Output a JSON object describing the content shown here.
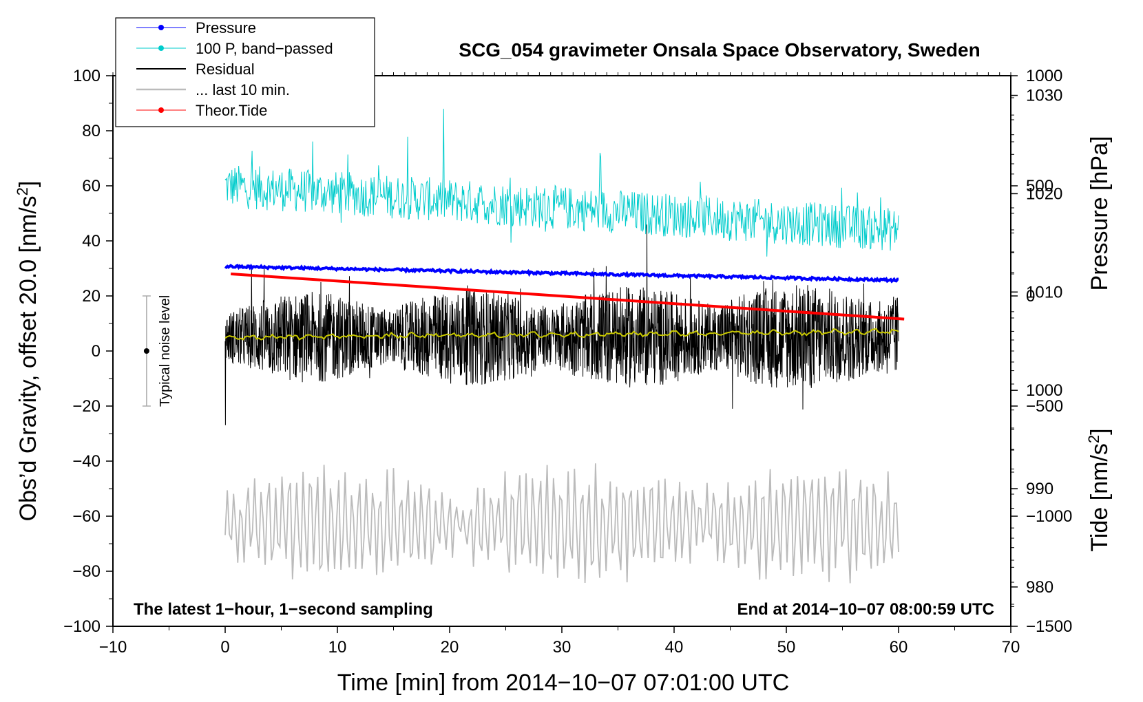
{
  "chart_data": {
    "type": "line",
    "title": "SCG_054 gravimeter Onsala Space Observatory, Sweden",
    "xlabel": "Time [min] from 2014−10−07 07:01:00 UTC",
    "ylabel_left_main": "Obs’d Gravity, offset 20.0 [nm/s",
    "ylabel_left_sup": "2",
    "ylabel_left_end": "]",
    "ylabel_right_pressure": "Pressure [hPa]",
    "ylabel_right_tide_main": "Tide [nm/s",
    "ylabel_right_tide_sup": "2",
    "ylabel_right_tide_end": "]",
    "xlim": [
      -10,
      70
    ],
    "ylim_left": [
      -100,
      100
    ],
    "pressure_axis_range": [
      976,
      1032
    ],
    "tide_axis_range": [
      -1500,
      1000
    ],
    "x_ticks": [
      {
        "value": -10,
        "label": "−10"
      },
      {
        "value": 0,
        "label": "0"
      },
      {
        "value": 10,
        "label": "10"
      },
      {
        "value": 20,
        "label": "20"
      },
      {
        "value": 30,
        "label": "30"
      },
      {
        "value": 40,
        "label": "40"
      },
      {
        "value": 50,
        "label": "50"
      },
      {
        "value": 60,
        "label": "60"
      },
      {
        "value": 70,
        "label": "70"
      }
    ],
    "y_left_ticks": [
      {
        "value": 100,
        "label": "100"
      },
      {
        "value": 80,
        "label": "80"
      },
      {
        "value": 60,
        "label": "60"
      },
      {
        "value": 40,
        "label": "40"
      },
      {
        "value": 20,
        "label": "20"
      },
      {
        "value": 0,
        "label": "0"
      },
      {
        "value": -20,
        "label": "−20"
      },
      {
        "value": -40,
        "label": "−40"
      },
      {
        "value": -60,
        "label": "−60"
      },
      {
        "value": -80,
        "label": "−80"
      },
      {
        "value": -100,
        "label": "−100"
      }
    ],
    "pressure_ticks": [
      {
        "value": 1030,
        "label": "1030"
      },
      {
        "value": 1020,
        "label": "1020"
      },
      {
        "value": 1010,
        "label": "1010"
      },
      {
        "value": 1000,
        "label": "1000"
      },
      {
        "value": 990,
        "label": "990"
      },
      {
        "value": 980,
        "label": "980"
      }
    ],
    "tide_ticks": [
      {
        "value": 1000,
        "label": "1000"
      },
      {
        "value": 500,
        "label": "500"
      },
      {
        "value": 0,
        "label": "0"
      },
      {
        "value": -500,
        "label": "−500"
      },
      {
        "value": -1000,
        "label": "−1000"
      },
      {
        "value": -1500,
        "label": "−1500"
      }
    ],
    "legend": [
      {
        "label": "Pressure",
        "color": "#0000ff",
        "marker": true
      },
      {
        "label": "100 P, band−passed",
        "color": "#00cccc",
        "marker": true
      },
      {
        "label": "Residual",
        "color": "#000000",
        "marker": false
      },
      {
        "label": "... last 10 min.",
        "color": "#bbbbbb",
        "marker": false
      },
      {
        "label": "Theor.Tide",
        "color": "#ff0000",
        "marker": true
      }
    ],
    "annotations": {
      "bottom_left": "The latest 1−hour, 1−second sampling",
      "bottom_right": "End at 2014−10−07 08:00:59 UTC",
      "noise_label": "Typical noise level"
    },
    "noise_bar": {
      "x": -7,
      "center": 0,
      "low": -20,
      "high": 20
    },
    "series": [
      {
        "name": "Pressure",
        "axis": "pressure",
        "color": "#0000ff",
        "x_start": 0,
        "x_end": 60,
        "y_start": 1012.6,
        "y_end": 1011.2
      },
      {
        "name": "100 P, band-passed",
        "axis": "left",
        "color": "#00cccc",
        "x_start": 0,
        "x_end": 60,
        "level_start": 60,
        "level_end": 44,
        "amplitude": 8
      },
      {
        "name": "Residual",
        "axis": "left",
        "color": "#000000",
        "x_start": 0,
        "x_end": 60,
        "level": 5,
        "amplitude": 16
      },
      {
        "name": "Residual smoothed",
        "axis": "left",
        "color": "#c8c800",
        "x_start": 0,
        "x_end": 60,
        "level_start": 5,
        "level_end": 7
      },
      {
        "name": "... last 10 min.",
        "axis": "left",
        "color": "#bbbbbb",
        "x_start": 0,
        "x_end": 60,
        "level": -63,
        "amplitude": 17
      },
      {
        "name": "Theor.Tide",
        "axis": "tide",
        "color": "#ff0000",
        "x_start": 0.5,
        "x_end": 60.5,
        "y_start": 100,
        "y_end": -105
      }
    ]
  }
}
